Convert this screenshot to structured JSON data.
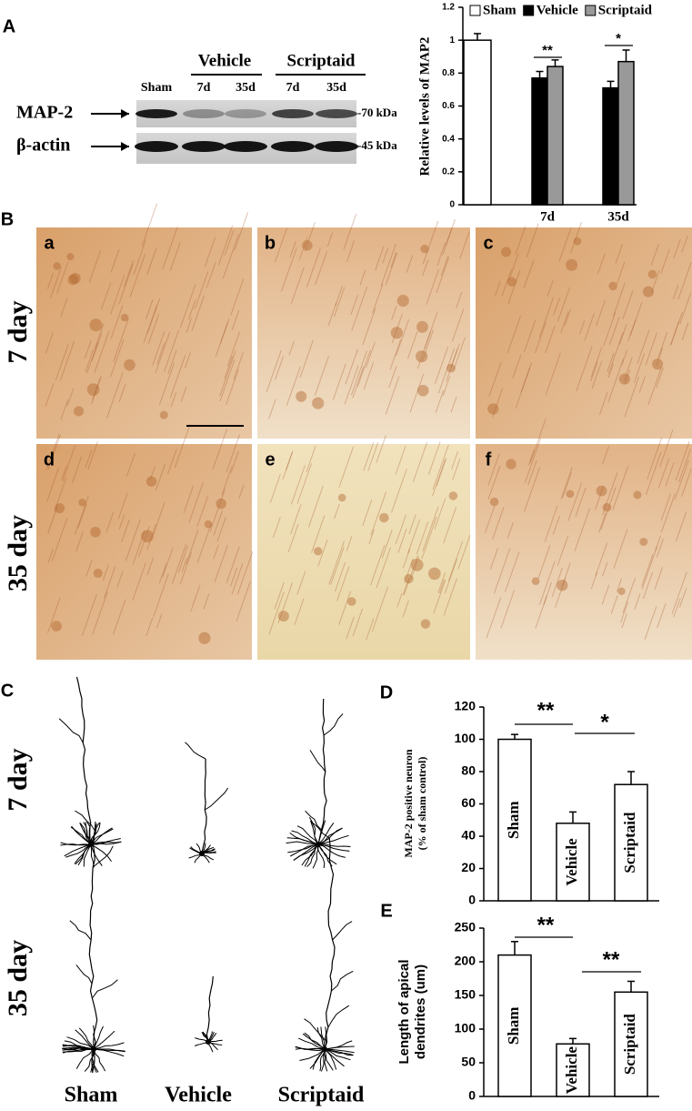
{
  "panel_labels": [
    "A",
    "B",
    "C",
    "D",
    "E"
  ],
  "blot": {
    "groups": [
      "Vehicle",
      "Scriptaid"
    ],
    "lanes": [
      "Sham",
      "7d",
      "35d",
      "7d",
      "35d"
    ],
    "proteins": [
      "MAP-2",
      "β-actin"
    ],
    "sizes": [
      "-70 kDa",
      "-45 kDa"
    ]
  },
  "micrographs": {
    "labels": [
      "a",
      "b",
      "c",
      "d",
      "e",
      "f"
    ],
    "rows": [
      "7 day",
      "35 day"
    ]
  },
  "tracings": {
    "rows": [
      "7 day",
      "35 day"
    ],
    "columns": [
      "Sham",
      "Vehicle",
      "Scriptaid"
    ]
  },
  "chart_data": [
    {
      "type": "bar",
      "ylabel": "Relative levels of MAP2",
      "categories": [
        null,
        "7d",
        "35d"
      ],
      "series": [
        {
          "name": "Sham",
          "color": "#ffffff",
          "values": [
            1.0,
            null,
            null
          ],
          "errors": [
            0.04,
            null,
            null
          ]
        },
        {
          "name": "Vehicle",
          "color": "#000000",
          "values": [
            null,
            0.77,
            0.71
          ],
          "errors": [
            null,
            0.04,
            0.04
          ]
        },
        {
          "name": "Scriptaid",
          "color": "#999999",
          "values": [
            null,
            0.84,
            0.87
          ],
          "errors": [
            null,
            0.04,
            0.07
          ]
        }
      ],
      "ylim": [
        0,
        1.2
      ],
      "yticks": [
        0,
        0.2,
        0.4,
        0.6,
        0.8,
        1,
        1.2
      ],
      "annotations": [
        "**",
        "*"
      ]
    },
    {
      "type": "bar",
      "ylabel": [
        "MAP-2 positive neuron",
        "(% of sham control)"
      ],
      "categories": [
        "Sham",
        "Vehicle",
        "Scriptaid"
      ],
      "values": [
        100,
        48,
        72
      ],
      "errors": [
        3,
        7,
        8
      ],
      "color": "#ffffff",
      "ylim": [
        0,
        120
      ],
      "yticks": [
        0,
        20,
        40,
        60,
        80,
        100,
        120
      ],
      "annotations": [
        "**",
        "*"
      ]
    },
    {
      "type": "bar",
      "ylabel": [
        "Length of apical",
        "dendrites (um)"
      ],
      "categories": [
        "Sham",
        "Vehicle",
        "Scriptaid"
      ],
      "values": [
        210,
        78,
        155
      ],
      "errors": [
        20,
        8,
        16
      ],
      "color": "#ffffff",
      "ylim": [
        0,
        250
      ],
      "yticks": [
        0,
        50,
        100,
        150,
        200,
        250
      ],
      "annotations": [
        "**",
        "**"
      ]
    }
  ]
}
